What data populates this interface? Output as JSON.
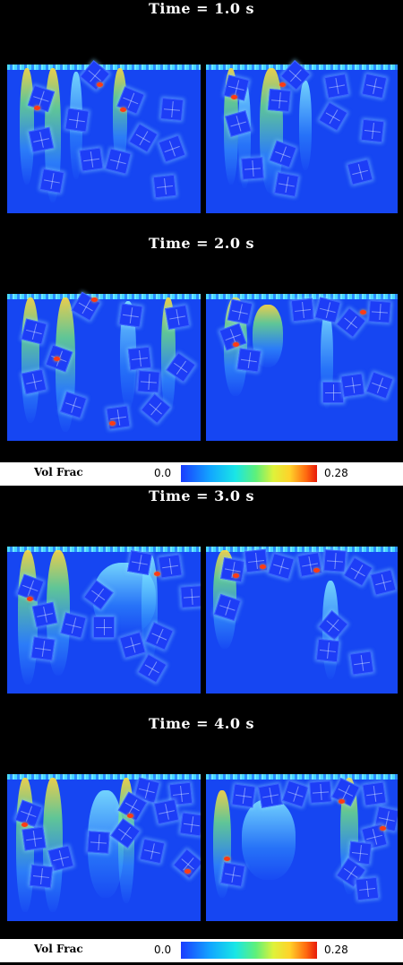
{
  "frames": [
    {
      "title": "Time = 1.0 s"
    },
    {
      "title": "Time = 2.0 s"
    },
    {
      "title": "Time = 3.0 s"
    },
    {
      "title": "Time = 4.0 s"
    }
  ],
  "legend": {
    "label": "Vol Frac",
    "min": "0.0",
    "max": "0.28",
    "colormap": [
      "#1a3cff",
      "#12a8ff",
      "#19e6e6",
      "#5ef07a",
      "#dff23a",
      "#ffd22a",
      "#ff6a10",
      "#e81a0a"
    ]
  },
  "colors": {
    "background": "#000000",
    "fluid": "#1646f2",
    "cube": "#1d3df6"
  }
}
